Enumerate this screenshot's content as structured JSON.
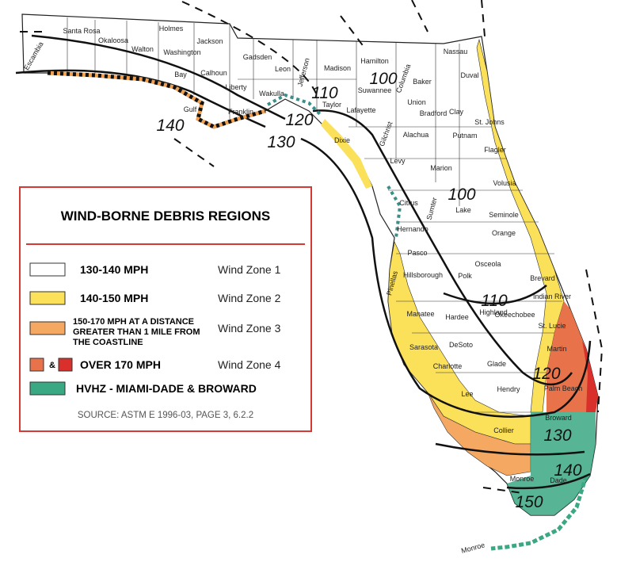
{
  "map": {
    "legend": {
      "title": "WIND-BORNE DEBRIS REGIONS",
      "items": [
        {
          "label": "130-140 MPH",
          "zone": "Wind Zone 1",
          "colors": [
            "#ffffff"
          ]
        },
        {
          "label": "140-150 MPH",
          "zone": "Wind Zone 2",
          "colors": [
            "#fbe05a"
          ]
        },
        {
          "label": [
            "150-170 MPH AT A DISTANCE",
            "GREATER THAN 1 MILE FROM",
            "THE COASTLINE"
          ],
          "zone": "Wind Zone 3",
          "colors": [
            "#f5a861"
          ]
        },
        {
          "label": "OVER 170 MPH",
          "zone": "Wind Zone 4",
          "colors": [
            "#e8734a",
            "#d9302c"
          ],
          "separator": "&"
        },
        {
          "label": "HVHZ - MIAMI-DADE & BROWARD",
          "colors": [
            "#3aa883"
          ]
        }
      ],
      "source": "SOURCE: ASTM E 1996-03, PAGE 3, 6.2.2"
    },
    "contour_labels": [
      140,
      130,
      120,
      110,
      100,
      100,
      110,
      120,
      130,
      140,
      150
    ],
    "counties": [
      "Escambia",
      "Santa Rosa",
      "Okaloosa",
      "Walton",
      "Holmes",
      "Washington",
      "Jackson",
      "Calhoun",
      "Bay",
      "Gulf",
      "Liberty",
      "Franklin",
      "Gadsden",
      "Leon",
      "Wakulla",
      "Jefferson",
      "Madison",
      "Taylor",
      "Hamilton",
      "Suwannee",
      "Lafayette",
      "Columbia",
      "Baker",
      "Union",
      "Bradford",
      "Nassau",
      "Duval",
      "Clay",
      "St. Johns",
      "Putnam",
      "Flagler",
      "Alachua",
      "Gilchrist",
      "Dixie",
      "Levy",
      "Marion",
      "Volusia",
      "Citrus",
      "Sumter",
      "Lake",
      "Seminole",
      "Orange",
      "Hernando",
      "Pasco",
      "Pinellas",
      "Hillsborough",
      "Polk",
      "Osceola",
      "Brevard",
      "Indian River",
      "Okeechobee",
      "Highland",
      "Hardee",
      "Manatee",
      "St. Lucie",
      "Sarasota",
      "DeSoto",
      "Martin",
      "Charlotte",
      "Glade",
      "Palm Beach",
      "Lee",
      "Hendry",
      "Collier",
      "Broward",
      "Dade",
      "Monroe",
      "Monroe"
    ]
  }
}
